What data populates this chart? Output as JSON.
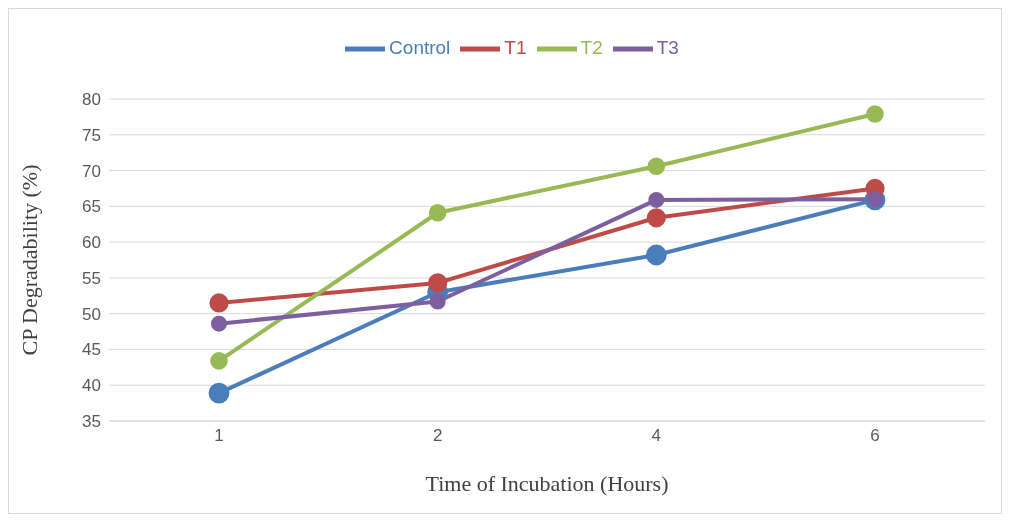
{
  "chart_data": {
    "type": "line",
    "xlabel": "Time of Incubation (Hours)",
    "ylabel": "CP Degradability (%)",
    "categories": [
      "1",
      "2",
      "4",
      "6"
    ],
    "series": [
      {
        "name": "Control",
        "color": "#4a7ebb",
        "values": [
          38.9,
          53.0,
          58.2,
          65.9
        ]
      },
      {
        "name": "T1",
        "color": "#be4b48",
        "values": [
          51.5,
          54.3,
          63.4,
          67.5
        ]
      },
      {
        "name": "T2",
        "color": "#98b954",
        "values": [
          43.4,
          64.1,
          70.6,
          77.9
        ]
      },
      {
        "name": "T3",
        "color": "#7d5fa0",
        "values": [
          48.6,
          51.7,
          65.9,
          66.0
        ]
      }
    ],
    "ylim": [
      35,
      80
    ],
    "yticks": [
      35,
      40,
      45,
      50,
      55,
      60,
      65,
      70,
      75,
      80
    ],
    "grid": "y",
    "legend": "top",
    "marker": "circle",
    "line_style": "solid"
  }
}
